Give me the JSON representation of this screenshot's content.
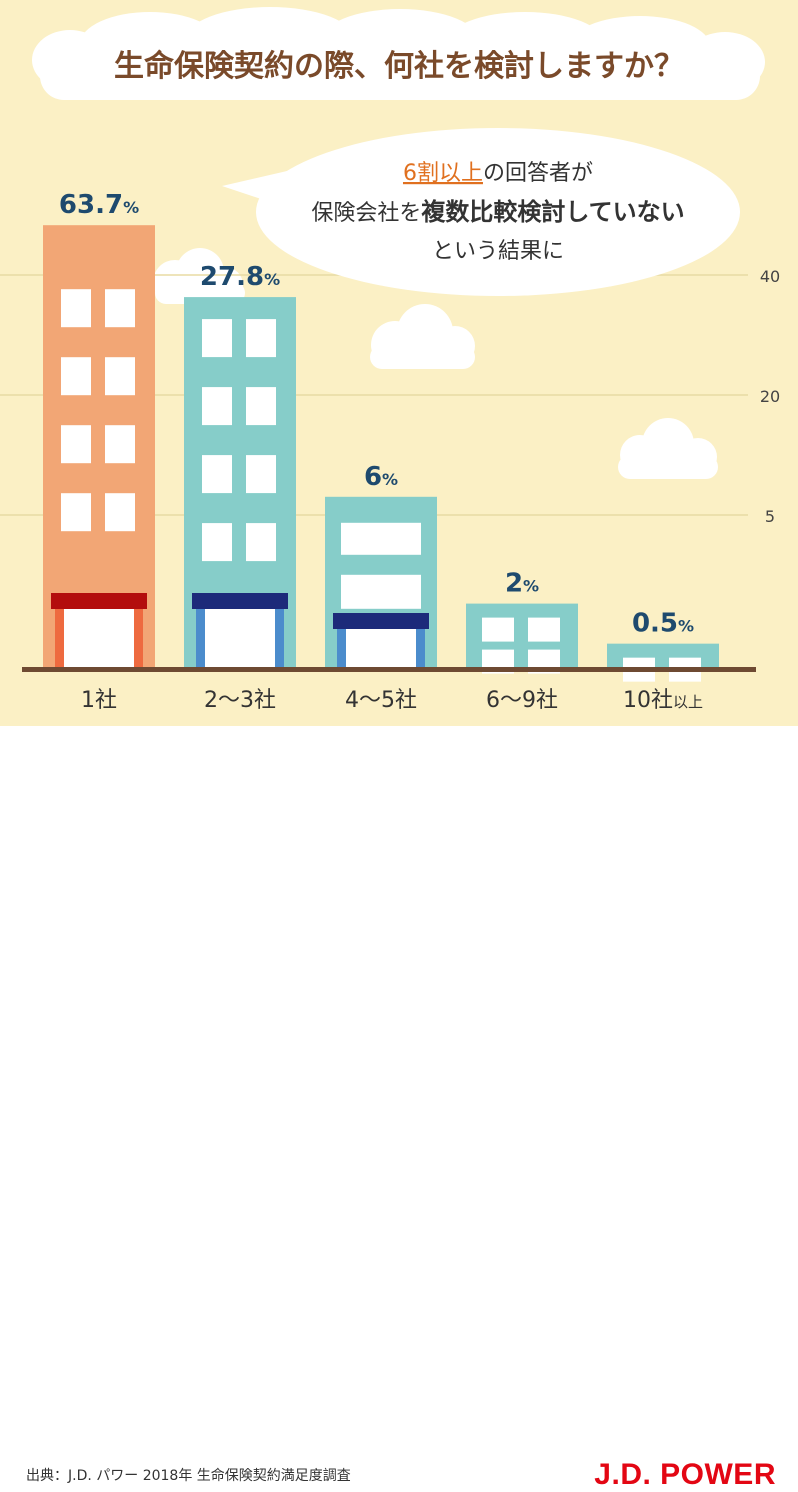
{
  "chart_data": {
    "type": "bar",
    "title": "生命保険契約の際、何社を検討しますか？",
    "categories": [
      "1社",
      "2〜3社",
      "4〜5社",
      "6〜9社",
      "10社"
    ],
    "last_category_suffix": "以上",
    "values": [
      63.7,
      27.8,
      6,
      2,
      0.5
    ],
    "value_labels": [
      "63.7",
      "27.8",
      "6",
      "2",
      "0.5"
    ],
    "unit": "%",
    "y_ticks": [
      "40",
      "20",
      "5"
    ],
    "grid": true,
    "scale": "non-linear (broken)",
    "colors": {
      "highlight_bar": "#f2a675",
      "bar": "#86cdc9",
      "background": "#fbf0c5",
      "value_label": "#1e4a6e",
      "accent_text": "#e0701f"
    }
  },
  "callout": {
    "line1_highlight": "6割以上",
    "line1_rest": "の回答者が",
    "line2_pre": "保険会社を",
    "line2_bold": "複数比較検討していない",
    "line3": "という結果に"
  },
  "footer": {
    "source": "出典：J.D. パワー 2018年 生命保険契約満足度調査",
    "brand": "J.D. POWER"
  }
}
